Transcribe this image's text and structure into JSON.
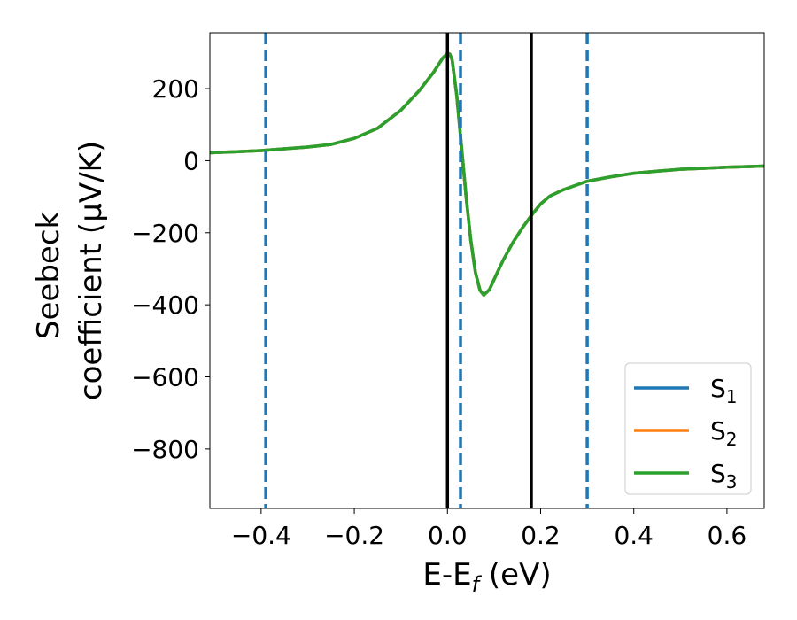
{
  "chart_data": {
    "type": "line",
    "title": "",
    "xlabel": {
      "main": "E-E",
      "subscript": "f",
      "unit": " (eV)"
    },
    "ylabel": {
      "line1": "Seebeck",
      "line2": "coefficient  (μV/K)"
    },
    "xlim": [
      -0.51,
      0.68
    ],
    "ylim": [
      -965,
      355
    ],
    "xticks": [
      -0.4,
      -0.2,
      0.0,
      0.2,
      0.4,
      0.6
    ],
    "xtick_labels": [
      "−0.4",
      "−0.2",
      "0.0",
      "0.2",
      "0.4",
      "0.6"
    ],
    "yticks": [
      200,
      0,
      -200,
      -400,
      -600,
      -800
    ],
    "ytick_labels": [
      "200",
      "0",
      "−200",
      "−400",
      "−600",
      "−800"
    ],
    "grid": false,
    "legend_position": "bottom-right",
    "series": [
      {
        "name": "S",
        "subscript": "1",
        "color": "#1f77b4",
        "points": [
          [
            -0.51,
            22
          ],
          [
            -0.45,
            25
          ],
          [
            -0.4,
            28
          ],
          [
            -0.35,
            33
          ],
          [
            -0.3,
            38
          ],
          [
            -0.25,
            45
          ],
          [
            -0.2,
            62
          ],
          [
            -0.15,
            90
          ],
          [
            -0.1,
            140
          ],
          [
            -0.06,
            195
          ],
          [
            -0.03,
            245
          ],
          [
            -0.01,
            285
          ],
          [
            0.0,
            298
          ],
          [
            0.005,
            296
          ],
          [
            0.01,
            280
          ],
          [
            0.02,
            180
          ],
          [
            0.03,
            40
          ],
          [
            0.04,
            -100
          ],
          [
            0.05,
            -220
          ],
          [
            0.06,
            -310
          ],
          [
            0.07,
            -360
          ],
          [
            0.078,
            -373
          ],
          [
            0.09,
            -358
          ],
          [
            0.1,
            -330
          ],
          [
            0.12,
            -275
          ],
          [
            0.14,
            -228
          ],
          [
            0.16,
            -188
          ],
          [
            0.18,
            -152
          ],
          [
            0.2,
            -120
          ],
          [
            0.22,
            -98
          ],
          [
            0.25,
            -80
          ],
          [
            0.3,
            -57
          ],
          [
            0.35,
            -45
          ],
          [
            0.4,
            -35
          ],
          [
            0.45,
            -29
          ],
          [
            0.5,
            -24
          ],
          [
            0.55,
            -21
          ],
          [
            0.6,
            -18
          ],
          [
            0.68,
            -15
          ]
        ]
      },
      {
        "name": "S",
        "subscript": "2",
        "color": "#ff7f0e",
        "points": [
          [
            -0.51,
            22
          ],
          [
            -0.45,
            25
          ],
          [
            -0.4,
            28
          ],
          [
            -0.35,
            33
          ],
          [
            -0.3,
            38
          ],
          [
            -0.25,
            45
          ],
          [
            -0.2,
            62
          ],
          [
            -0.15,
            90
          ],
          [
            -0.1,
            140
          ],
          [
            -0.06,
            195
          ],
          [
            -0.03,
            245
          ],
          [
            -0.01,
            285
          ],
          [
            0.0,
            298
          ],
          [
            0.005,
            296
          ],
          [
            0.01,
            280
          ],
          [
            0.02,
            180
          ],
          [
            0.03,
            40
          ],
          [
            0.04,
            -100
          ],
          [
            0.05,
            -220
          ],
          [
            0.06,
            -310
          ],
          [
            0.07,
            -360
          ],
          [
            0.078,
            -373
          ],
          [
            0.09,
            -358
          ],
          [
            0.1,
            -330
          ],
          [
            0.12,
            -275
          ],
          [
            0.14,
            -228
          ],
          [
            0.16,
            -188
          ],
          [
            0.18,
            -152
          ],
          [
            0.2,
            -120
          ],
          [
            0.22,
            -98
          ],
          [
            0.25,
            -80
          ],
          [
            0.3,
            -57
          ],
          [
            0.35,
            -45
          ],
          [
            0.4,
            -35
          ],
          [
            0.45,
            -29
          ],
          [
            0.5,
            -24
          ],
          [
            0.55,
            -21
          ],
          [
            0.6,
            -18
          ],
          [
            0.68,
            -15
          ]
        ]
      },
      {
        "name": "S",
        "subscript": "3",
        "color": "#2ca02c",
        "points": [
          [
            -0.51,
            22
          ],
          [
            -0.45,
            25
          ],
          [
            -0.4,
            28
          ],
          [
            -0.35,
            33
          ],
          [
            -0.3,
            38
          ],
          [
            -0.25,
            45
          ],
          [
            -0.2,
            62
          ],
          [
            -0.15,
            90
          ],
          [
            -0.1,
            140
          ],
          [
            -0.06,
            195
          ],
          [
            -0.03,
            245
          ],
          [
            -0.01,
            285
          ],
          [
            0.0,
            298
          ],
          [
            0.005,
            296
          ],
          [
            0.01,
            280
          ],
          [
            0.02,
            180
          ],
          [
            0.03,
            40
          ],
          [
            0.04,
            -100
          ],
          [
            0.05,
            -220
          ],
          [
            0.06,
            -310
          ],
          [
            0.07,
            -360
          ],
          [
            0.078,
            -373
          ],
          [
            0.09,
            -358
          ],
          [
            0.1,
            -330
          ],
          [
            0.12,
            -275
          ],
          [
            0.14,
            -228
          ],
          [
            0.16,
            -188
          ],
          [
            0.18,
            -152
          ],
          [
            0.2,
            -120
          ],
          [
            0.22,
            -98
          ],
          [
            0.25,
            -80
          ],
          [
            0.3,
            -57
          ],
          [
            0.35,
            -45
          ],
          [
            0.4,
            -35
          ],
          [
            0.45,
            -29
          ],
          [
            0.5,
            -24
          ],
          [
            0.55,
            -21
          ],
          [
            0.6,
            -18
          ],
          [
            0.68,
            -15
          ]
        ]
      }
    ],
    "vertical_lines": [
      {
        "x": -0.39,
        "style": "dashed",
        "color": "#1f77b4"
      },
      {
        "x": 0.0,
        "style": "solid",
        "color": "#000000"
      },
      {
        "x": 0.028,
        "style": "dashed",
        "color": "#1f77b4"
      },
      {
        "x": 0.18,
        "style": "solid",
        "color": "#000000"
      },
      {
        "x": 0.3,
        "style": "dashed",
        "color": "#1f77b4"
      }
    ]
  }
}
